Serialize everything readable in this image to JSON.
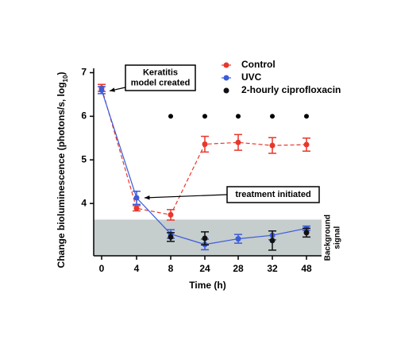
{
  "chart_data": {
    "type": "line",
    "y_label": [
      "Change bioluminescence (photons/s, log",
      "10",
      ")"
    ],
    "x_label": "Time (h)",
    "categories": [
      "0",
      "4",
      "8",
      "24",
      "28",
      "32",
      "48"
    ],
    "ylim": [
      2.8,
      7.1
    ],
    "yticks": [
      4,
      5,
      6,
      7
    ],
    "series": [
      {
        "name": "Control",
        "color": "#e8372c",
        "values": [
          6.65,
          3.89,
          3.74,
          5.36,
          5.4,
          5.33,
          5.35
        ],
        "errors": [
          0.08,
          0.06,
          0.12,
          0.18,
          0.18,
          0.18,
          0.15
        ],
        "dashed": true
      },
      {
        "name": "UVC",
        "color": "#3b5bdb",
        "values": [
          6.6,
          4.13,
          3.3,
          3.06,
          3.19,
          3.27,
          3.43
        ],
        "errors": [
          0.08,
          0.15,
          0.1,
          0.12,
          0.1,
          0.1,
          0.05
        ],
        "dashed": false
      },
      {
        "name": "2-hourly ciprofloxacin",
        "color": "#111111",
        "values": [
          null,
          null,
          3.23,
          3.2,
          null,
          3.15,
          3.33
        ],
        "errors": [
          null,
          null,
          0.1,
          0.15,
          null,
          0.22,
          0.1
        ],
        "dashed": false
      }
    ],
    "significance_markers": {
      "y": 6,
      "categories": [
        "8",
        "24",
        "28",
        "32",
        "48"
      ]
    },
    "background_signal": {
      "label": [
        "Background",
        "signal"
      ],
      "max": 3.63,
      "color": "#c5cdcd"
    },
    "annotations": [
      {
        "text": [
          "Keratitis",
          "model created"
        ],
        "target_category": "0",
        "target_y": 6.8
      },
      {
        "text": [
          "treatment initiated"
        ],
        "target_category": "4",
        "target_y": 4.13
      }
    ]
  }
}
